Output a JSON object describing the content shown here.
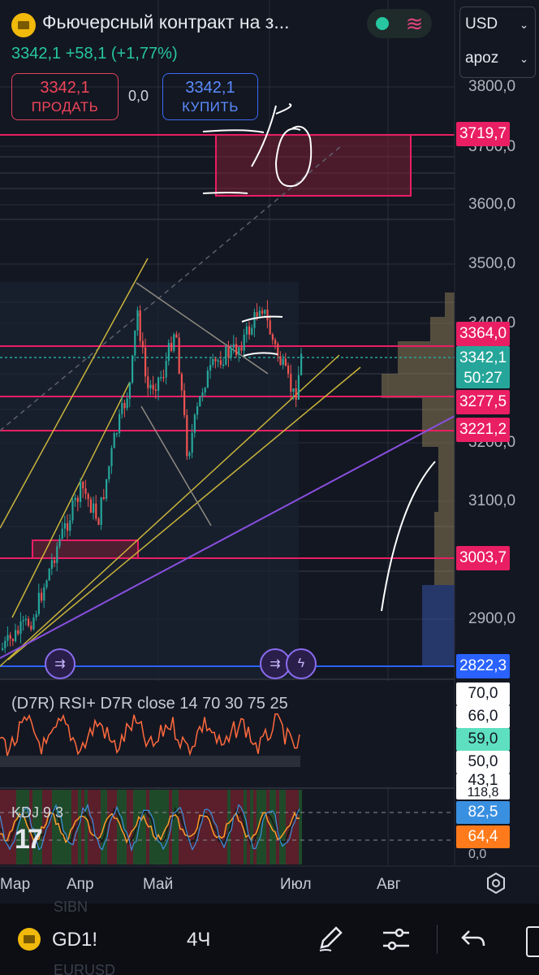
{
  "header": {
    "title": "Фьючерсный контракт на з...",
    "quote": "3342,1 +58,1 (+1,77%)",
    "currency": "USD",
    "unit": "apoz"
  },
  "trade": {
    "sell_price": "3342,1",
    "sell_label": "ПРОДАТЬ",
    "spread": "0,0",
    "buy_price": "3342,1",
    "buy_label": "КУПИТЬ"
  },
  "price_axis": [
    "3800,0",
    "3700,0",
    "3600,0",
    "3500,0",
    "3400,0",
    "3200,0",
    "3100,0",
    "2900,0"
  ],
  "price_tags": {
    "resistance_top": "3719,7",
    "level_3364": "3364,0",
    "current": "3342,1",
    "countdown": "50:27",
    "level_3277": "3277,5",
    "level_3221": "3221,2",
    "level_3003": "3003,7",
    "level_2822": "2822,3"
  },
  "rsi": {
    "title": "(D7R) RSI+ D7R close 14 70 30 75 25",
    "levels": [
      "70,0",
      "66,0",
      "59,0",
      "50,0",
      "43,1"
    ]
  },
  "kdj": {
    "title": "KDJ 9 3",
    "scale_top": "118,8",
    "k_value": "82,5",
    "d_value": "64,4",
    "scale_bottom": "0,0"
  },
  "time_axis": [
    "Мар",
    "Апр",
    "Май",
    "Июл",
    "Авг"
  ],
  "bottom_bar": {
    "symbol": "GD1!",
    "interval": "4Ч",
    "ghost_top": "SIBN",
    "ghost_bottom": "EURUSD"
  },
  "icons": [
    "gold-logo-icon",
    "settings-icon",
    "pen-icon",
    "sliders-icon",
    "undo-icon",
    "lightning-icon",
    "arrows-icon"
  ],
  "colors": {
    "background": "#131722",
    "positive": "#26c6a0",
    "negative": "#e91e63",
    "buy": "#2962ff"
  }
}
